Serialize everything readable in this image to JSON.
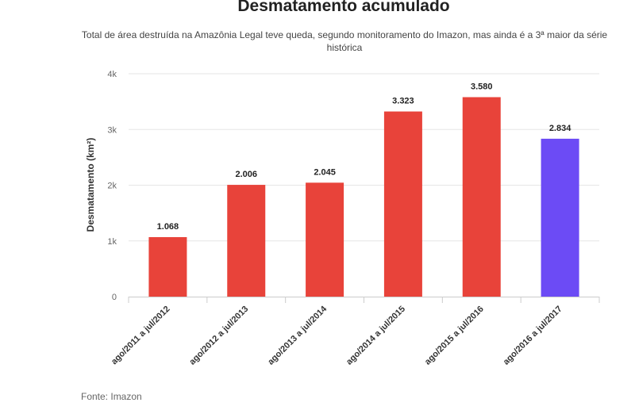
{
  "chart_data": {
    "type": "bar",
    "title": "Desmatamento acumulado",
    "subtitle": "Total de área destruída na Amazônia Legal teve queda, segundo monitoramento do Imazon, mas ainda é a 3ª maior da série histórica",
    "ylabel": "Desmatamento (km²)",
    "xlabel": "",
    "ylim": [
      0,
      4000
    ],
    "yticks": [
      {
        "value": 0,
        "label": "0"
      },
      {
        "value": 1000,
        "label": "1k"
      },
      {
        "value": 2000,
        "label": "2k"
      },
      {
        "value": 3000,
        "label": "3k"
      },
      {
        "value": 4000,
        "label": "4k"
      }
    ],
    "grid": true,
    "categories": [
      "ago/2011 a jul/2012",
      "ago/2012 a jul/2013",
      "ago/2013 a jul/2014",
      "ago/2014 a jul/2015",
      "ago/2015 a jul/2016",
      "ago/2016 a jul/2017"
    ],
    "values": [
      1068,
      2006,
      2045,
      3323,
      3580,
      2834
    ],
    "value_labels": [
      "1.068",
      "2.006",
      "2.045",
      "3.323",
      "3.580",
      "2.834"
    ],
    "colors": [
      "#e8433a",
      "#e8433a",
      "#e8433a",
      "#e8433a",
      "#e8433a",
      "#6c4bf5"
    ],
    "source": "Fonte: Imazon"
  }
}
